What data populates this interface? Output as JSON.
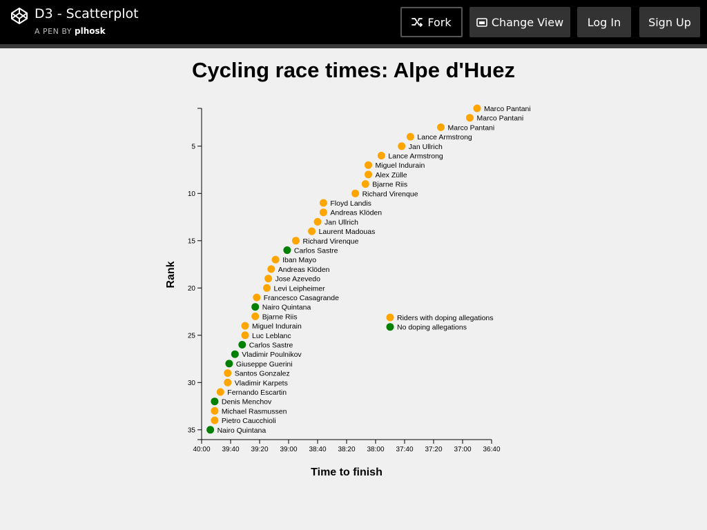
{
  "header": {
    "pen_title": "D3 - Scatterplot",
    "pen_by": "A PEN BY",
    "author": "plhosk",
    "fork_label": "Fork",
    "change_view_label": "Change View",
    "login_label": "Log In",
    "signup_label": "Sign Up"
  },
  "colors": {
    "doping": "#FFA500",
    "clean": "#008000",
    "axis": "#000000"
  },
  "chart_data": {
    "type": "scatter",
    "title": "Cycling race times: Alpe d'Huez",
    "xlabel": "Time to finish",
    "ylabel": "Rank",
    "x_ticks": [
      "40:00",
      "39:40",
      "39:20",
      "39:00",
      "38:40",
      "38:20",
      "38:00",
      "37:40",
      "37:20",
      "37:00",
      "36:40"
    ],
    "y_ticks": [
      5,
      10,
      15,
      20,
      25,
      30,
      35
    ],
    "xlim": [
      "40:00",
      "36:40"
    ],
    "ylim": [
      0,
      36
    ],
    "legend": [
      {
        "label": "Riders with doping allegations",
        "color": "#FFA500"
      },
      {
        "label": "No doping allegations",
        "color": "#008000"
      }
    ],
    "points": [
      {
        "rank": 1,
        "time": "36:50",
        "name": "Marco Pantani",
        "doping": true
      },
      {
        "rank": 2,
        "time": "36:55",
        "name": "Marco Pantani",
        "doping": true
      },
      {
        "rank": 3,
        "time": "37:15",
        "name": "Marco Pantani",
        "doping": true
      },
      {
        "rank": 4,
        "time": "37:36",
        "name": "Lance Armstrong",
        "doping": true
      },
      {
        "rank": 5,
        "time": "37:42",
        "name": "Jan Ullrich",
        "doping": true
      },
      {
        "rank": 6,
        "time": "37:56",
        "name": "Lance Armstrong",
        "doping": true
      },
      {
        "rank": 7,
        "time": "38:05",
        "name": "Miguel Indurain",
        "doping": true
      },
      {
        "rank": 8,
        "time": "38:05",
        "name": "Alex Zülle",
        "doping": true
      },
      {
        "rank": 9,
        "time": "38:07",
        "name": "Bjarne Riis",
        "doping": true
      },
      {
        "rank": 10,
        "time": "38:14",
        "name": "Richard Virenque",
        "doping": true
      },
      {
        "rank": 11,
        "time": "38:36",
        "name": "Floyd Landis",
        "doping": true
      },
      {
        "rank": 12,
        "time": "38:36",
        "name": "Andreas Klöden",
        "doping": true
      },
      {
        "rank": 13,
        "time": "38:40",
        "name": "Jan Ullrich",
        "doping": true
      },
      {
        "rank": 14,
        "time": "38:44",
        "name": "Laurent Madouas",
        "doping": true
      },
      {
        "rank": 15,
        "time": "38:55",
        "name": "Richard Virenque",
        "doping": true
      },
      {
        "rank": 16,
        "time": "39:01",
        "name": "Carlos Sastre",
        "doping": false
      },
      {
        "rank": 17,
        "time": "39:09",
        "name": "Iban Mayo",
        "doping": true
      },
      {
        "rank": 18,
        "time": "39:12",
        "name": "Andreas Klöden",
        "doping": true
      },
      {
        "rank": 19,
        "time": "39:14",
        "name": "Jose Azevedo",
        "doping": true
      },
      {
        "rank": 20,
        "time": "39:15",
        "name": "Levi Leipheimer",
        "doping": true
      },
      {
        "rank": 21,
        "time": "39:22",
        "name": "Francesco Casagrande",
        "doping": true
      },
      {
        "rank": 22,
        "time": "39:23",
        "name": "Nairo Quintana",
        "doping": false
      },
      {
        "rank": 23,
        "time": "39:23",
        "name": "Bjarne Riis",
        "doping": true
      },
      {
        "rank": 24,
        "time": "39:30",
        "name": "Miguel Indurain",
        "doping": true
      },
      {
        "rank": 25,
        "time": "39:30",
        "name": "Luc Leblanc",
        "doping": true
      },
      {
        "rank": 26,
        "time": "39:32",
        "name": "Carlos Sastre",
        "doping": false
      },
      {
        "rank": 27,
        "time": "39:37",
        "name": "Vladimir Poulnikov",
        "doping": false
      },
      {
        "rank": 28,
        "time": "39:41",
        "name": "Giuseppe Guerini",
        "doping": false
      },
      {
        "rank": 29,
        "time": "39:42",
        "name": "Santos Gonzalez",
        "doping": true
      },
      {
        "rank": 30,
        "time": "39:42",
        "name": "Vladimir Karpets",
        "doping": true
      },
      {
        "rank": 31,
        "time": "39:47",
        "name": "Fernando Escartin",
        "doping": true
      },
      {
        "rank": 32,
        "time": "39:51",
        "name": "Denis Menchov",
        "doping": false
      },
      {
        "rank": 33,
        "time": "39:51",
        "name": "Michael Rasmussen",
        "doping": true
      },
      {
        "rank": 34,
        "time": "39:51",
        "name": "Pietro Caucchioli",
        "doping": true
      },
      {
        "rank": 35,
        "time": "39:54",
        "name": "Nairo Quintana",
        "doping": false
      }
    ]
  }
}
